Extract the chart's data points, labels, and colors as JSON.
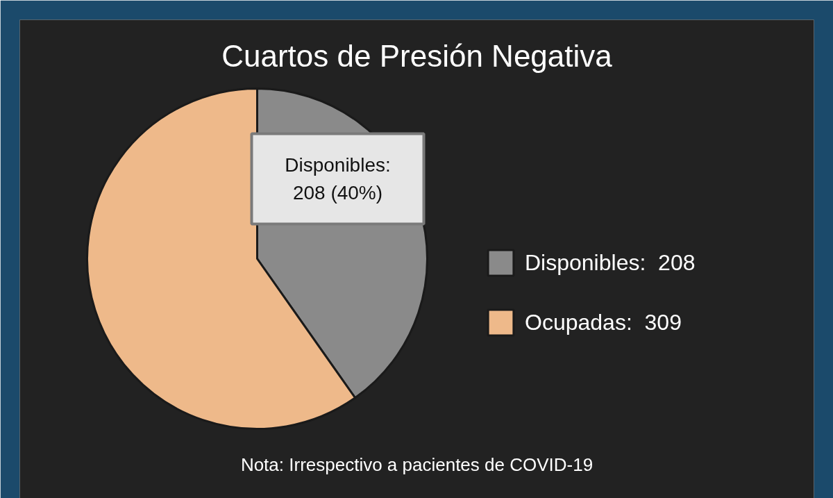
{
  "chart_data": {
    "type": "pie",
    "title": "Cuartos de Presión Negativa",
    "categories": [
      "Disponibles:  208",
      "Ocupadas:  309"
    ],
    "values": [
      208,
      309
    ],
    "colors": [
      "#8a8a8a",
      "#eeb98a"
    ],
    "legend": "right",
    "annotations": [
      "Disponibles:\n208 (40%)",
      "Nota: Irrespectivo a pacientes de COVID-19"
    ]
  }
}
